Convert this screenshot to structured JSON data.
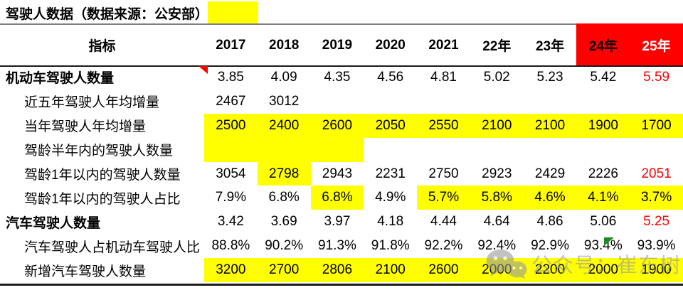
{
  "title": "驾驶人数据（数据来源：公安部）",
  "colors": {
    "highlight_yellow": "#ffff00",
    "accent_red": "#ff0000",
    "header_red_bg": "#ff0000",
    "green_marker": "#1f8a1f",
    "watermark_gray": "#9a9a9a"
  },
  "watermark": {
    "icon": "wechat-icon",
    "text": "公众号：崔东树"
  },
  "markers": {
    "red_comment_flag": "red-triangle-top-of-2017-motor-driver-cell",
    "green_comment_flag": "green-triangle-at-93.4%-cell"
  },
  "chart_data": {
    "type": "table",
    "title": "驾驶人数据（数据来源：公安部）",
    "header_label": "指标",
    "columns": [
      {
        "label": "2017"
      },
      {
        "label": "2018"
      },
      {
        "label": "2019"
      },
      {
        "label": "2020"
      },
      {
        "label": "2021"
      },
      {
        "label": "22年"
      },
      {
        "label": "23年"
      },
      {
        "label": "24年",
        "bg": "red"
      },
      {
        "label": "25年",
        "bg": "red",
        "color": "white"
      }
    ],
    "rows": [
      {
        "label": "机动车驾驶人数量",
        "style": "section",
        "cells": [
          {
            "v": "3.85"
          },
          {
            "v": "4.09"
          },
          {
            "v": "4.35"
          },
          {
            "v": "4.56"
          },
          {
            "v": "4.81"
          },
          {
            "v": "5.02"
          },
          {
            "v": "5.23"
          },
          {
            "v": "5.42"
          },
          {
            "v": "5.59",
            "color": "red"
          }
        ]
      },
      {
        "label": "近五年驾驶人年均增量",
        "style": "sub",
        "cells": [
          {
            "v": "2467"
          },
          {
            "v": "3012"
          },
          {},
          {},
          {},
          {},
          {},
          {},
          {}
        ]
      },
      {
        "label": "当年驾驶人年均增量",
        "style": "sub",
        "cells": [
          {
            "v": "2500",
            "bg": "yellow"
          },
          {
            "v": "2400",
            "bg": "yellow"
          },
          {
            "v": "2600",
            "bg": "yellow"
          },
          {
            "v": "2050",
            "bg": "yellow"
          },
          {
            "v": "2550",
            "bg": "yellow"
          },
          {
            "v": "2100",
            "bg": "yellow"
          },
          {
            "v": "2100",
            "bg": "yellow"
          },
          {
            "v": "1900",
            "bg": "yellow"
          },
          {
            "v": "1700",
            "bg": "yellow"
          }
        ]
      },
      {
        "label": "驾龄半年内的驾驶人数量",
        "style": "sub",
        "cells": [
          {
            "bg": "yellow"
          },
          {
            "bg": "yellow"
          },
          {
            "bg": "yellow"
          },
          {},
          {},
          {},
          {},
          {},
          {}
        ]
      },
      {
        "label": "驾龄1年以内的驾驶人数量",
        "style": "sub",
        "cells": [
          {
            "v": "3054"
          },
          {
            "v": "2798",
            "bg": "yellow"
          },
          {
            "v": "2943"
          },
          {
            "v": "2231"
          },
          {
            "v": "2750"
          },
          {
            "v": "2923"
          },
          {
            "v": "2429"
          },
          {
            "v": "2226"
          },
          {
            "v": "2051",
            "color": "red"
          }
        ]
      },
      {
        "label": "驾龄1年以内的驾驶人占比",
        "style": "sub",
        "cells": [
          {
            "v": "7.9%"
          },
          {
            "v": "6.8%"
          },
          {
            "v": "6.8%",
            "bg": "yellow"
          },
          {
            "v": "4.9%"
          },
          {
            "v": "5.7%",
            "bg": "yellow"
          },
          {
            "v": "5.8%",
            "bg": "yellow"
          },
          {
            "v": "4.6%",
            "bg": "yellow"
          },
          {
            "v": "4.1%",
            "bg": "yellow"
          },
          {
            "v": "3.7%",
            "bg": "yellow"
          }
        ]
      },
      {
        "label": "汽车驾驶人数量",
        "style": "section",
        "cells": [
          {
            "v": "3.42"
          },
          {
            "v": "3.69"
          },
          {
            "v": "3.97"
          },
          {
            "v": "4.18"
          },
          {
            "v": "4.44"
          },
          {
            "v": "4.64"
          },
          {
            "v": "4.86"
          },
          {
            "v": "5.06"
          },
          {
            "v": "5.25",
            "color": "red"
          }
        ]
      },
      {
        "label": "汽车驾驶人占机动车驾驶人比",
        "style": "sub",
        "cells": [
          {
            "v": "88.8%"
          },
          {
            "v": "90.2%"
          },
          {
            "v": "91.3%"
          },
          {
            "v": "91.8%"
          },
          {
            "v": "92.2%"
          },
          {
            "v": "92.4%"
          },
          {
            "v": "92.9%"
          },
          {
            "v": "93.4%",
            "marker": "green-flag"
          },
          {
            "v": "93.9%"
          }
        ]
      },
      {
        "label": "新增汽车驾驶人数量",
        "style": "sub",
        "cells": [
          {
            "v": "3200",
            "bg": "yellow"
          },
          {
            "v": "2700",
            "bg": "yellow"
          },
          {
            "v": "2806",
            "bg": "yellow"
          },
          {
            "v": "2100",
            "bg": "yellow"
          },
          {
            "v": "2600",
            "bg": "yellow"
          },
          {
            "v": "2000",
            "bg": "yellow"
          },
          {
            "v": "2200",
            "bg": "yellow"
          },
          {
            "v": "2000",
            "bg": "yellow"
          },
          {
            "v": "1900",
            "bg": "yellow"
          }
        ]
      }
    ]
  }
}
